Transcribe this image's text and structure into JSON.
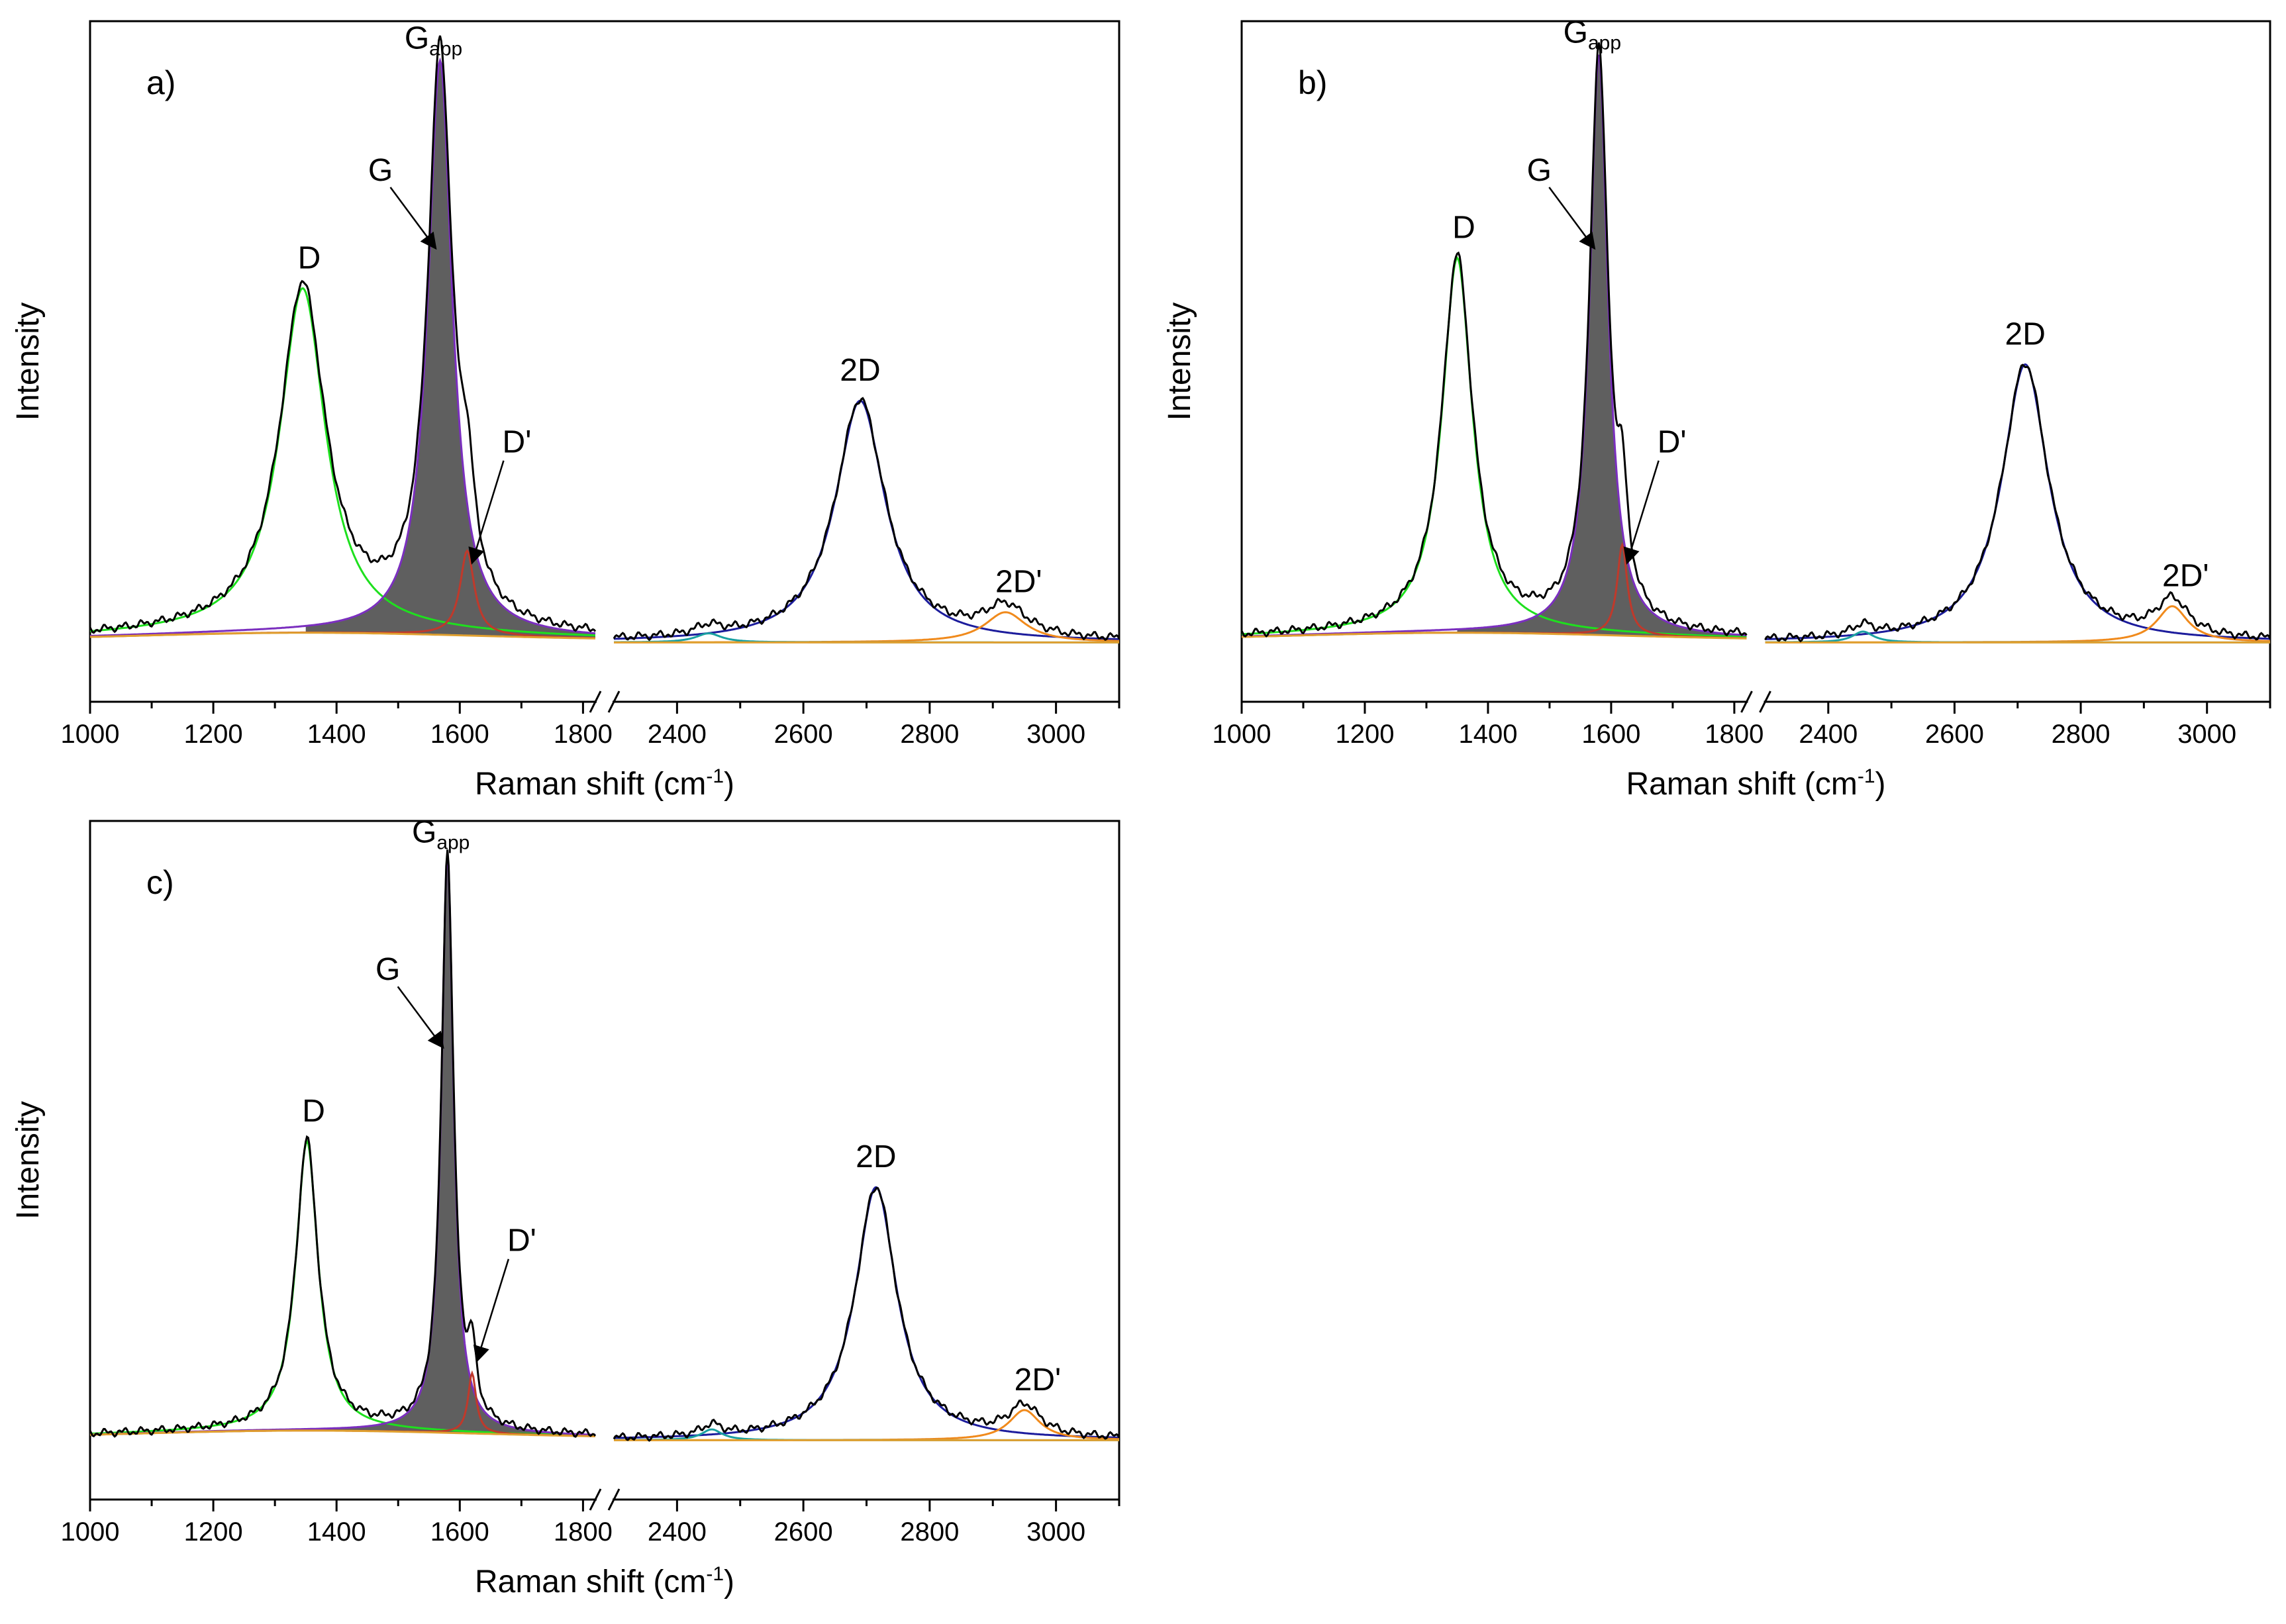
{
  "figure": {
    "colors": {
      "measured": "#000000",
      "fit_envelope": "#6a0dad",
      "fill": "#5f5f5f",
      "D": "#1ee01e",
      "G": "#7b2fbf",
      "Dprime": "#c0392b",
      "twoD": "#1c1c9c",
      "twoDprime": "#f08a1c",
      "small": "#1aa0a0",
      "background": "#e0a030"
    }
  },
  "chart_data": [
    {
      "type": "line",
      "panel": "a)",
      "xlabel": "Raman shift (cm-1)",
      "xlabel_parts": {
        "main": "Raman shift (cm",
        "sup": "-1",
        "end": ")"
      },
      "ylabel": "Intensity",
      "x_segments": [
        [
          1000,
          1820
        ],
        [
          2300,
          3100
        ]
      ],
      "tick_labels_left": [
        "1000",
        "1200",
        "1400",
        "1600",
        "1800"
      ],
      "tick_labels_right": [
        "2400",
        "2600",
        "2800",
        "3000"
      ],
      "ylim": [
        0,
        1.0
      ],
      "peaks": {
        "D": {
          "center": 1345,
          "height": 0.57,
          "width": 45
        },
        "G": {
          "center": 1568,
          "height": 0.95,
          "width": 24
        },
        "Dprime": {
          "center": 1612,
          "height": 0.14,
          "width": 14
        },
        "twoD": {
          "center": 2690,
          "height": 0.4,
          "width": 48
        },
        "twoDprime": {
          "center": 2920,
          "height": 0.05,
          "width": 40
        },
        "small": {
          "center": 2450,
          "height": 0.015,
          "width": 25
        }
      },
      "labels": {
        "Gapp": "G",
        "Gapp_sub": "app",
        "G": "G",
        "D": "D",
        "Dprime": "D'",
        "twoD": "2D",
        "twoDprime": "2D'"
      }
    },
    {
      "type": "line",
      "panel": "b)",
      "xlabel": "Raman shift (cm-1)",
      "xlabel_parts": {
        "main": "Raman shift (cm",
        "sup": "-1",
        "end": ")"
      },
      "ylabel": "Intensity",
      "x_segments": [
        [
          1000,
          1820
        ],
        [
          2300,
          3100
        ]
      ],
      "tick_labels_left": [
        "1000",
        "1200",
        "1400",
        "1600",
        "1800"
      ],
      "tick_labels_right": [
        "2400",
        "2600",
        "2800",
        "3000"
      ],
      "ylim": [
        0,
        1.0
      ],
      "peaks": {
        "D": {
          "center": 1350,
          "height": 0.62,
          "width": 30
        },
        "G": {
          "center": 1580,
          "height": 0.96,
          "width": 18
        },
        "Dprime": {
          "center": 1618,
          "height": 0.15,
          "width": 10
        },
        "twoD": {
          "center": 2712,
          "height": 0.46,
          "width": 45
        },
        "twoDprime": {
          "center": 2945,
          "height": 0.06,
          "width": 30
        },
        "small": {
          "center": 2455,
          "height": 0.018,
          "width": 20
        }
      },
      "labels": {
        "Gapp": "G",
        "Gapp_sub": "app",
        "G": "G",
        "D": "D",
        "Dprime": "D'",
        "twoD": "2D",
        "twoDprime": "2D'"
      }
    },
    {
      "type": "line",
      "panel": "c)",
      "xlabel": "Raman shift (cm-1)",
      "xlabel_parts": {
        "main": "Raman shift (cm",
        "sup": "-1",
        "end": ")"
      },
      "ylabel": "Intensity",
      "x_segments": [
        [
          1000,
          1820
        ],
        [
          2300,
          3100
        ]
      ],
      "tick_labels_left": [
        "1000",
        "1200",
        "1400",
        "1600",
        "1800"
      ],
      "tick_labels_right": [
        "2400",
        "2600",
        "2800",
        "3000"
      ],
      "ylim": [
        0,
        1.0
      ],
      "peaks": {
        "D": {
          "center": 1352,
          "height": 0.48,
          "width": 22
        },
        "G": {
          "center": 1580,
          "height": 0.96,
          "width": 12
        },
        "Dprime": {
          "center": 1620,
          "height": 0.1,
          "width": 8
        },
        "twoD": {
          "center": 2715,
          "height": 0.42,
          "width": 40
        },
        "twoDprime": {
          "center": 2950,
          "height": 0.05,
          "width": 30
        },
        "small": {
          "center": 2455,
          "height": 0.018,
          "width": 20
        }
      },
      "labels": {
        "Gapp": "G",
        "Gapp_sub": "app",
        "G": "G",
        "D": "D",
        "Dprime": "D'",
        "twoD": "2D",
        "twoDprime": "2D'"
      }
    }
  ]
}
